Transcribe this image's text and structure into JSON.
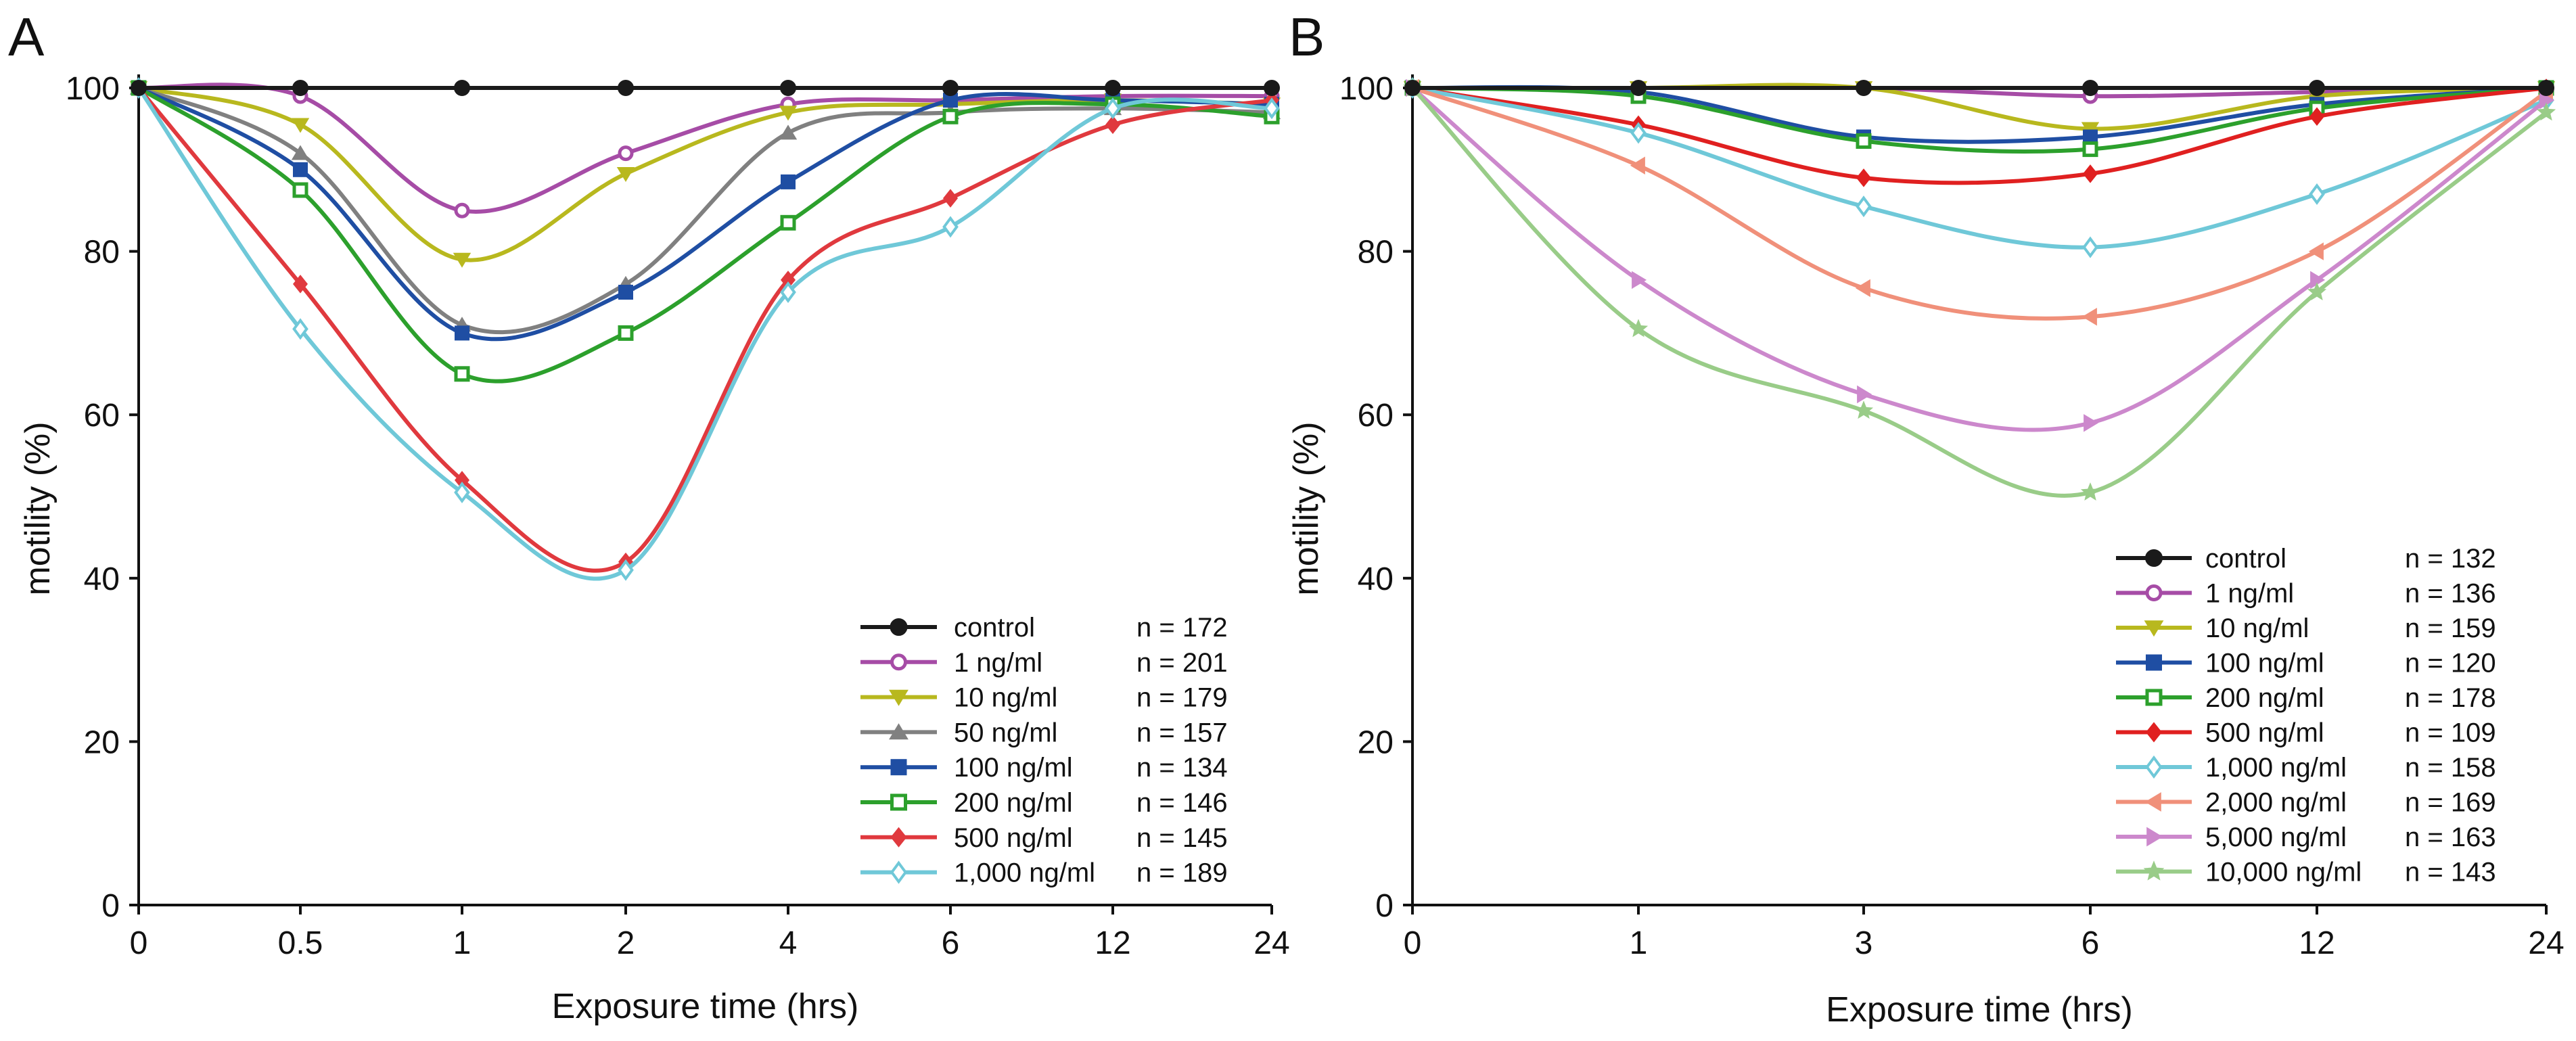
{
  "chart_data": [
    {
      "type": "line",
      "panel": "A",
      "xlabel": "Exposure time (hrs)",
      "ylabel": "motility (%)",
      "ylim": [
        0,
        100
      ],
      "yticks": [
        0,
        20,
        40,
        60,
        80,
        100
      ],
      "categories": [
        "0",
        "0.5",
        "1",
        "2",
        "4",
        "6",
        "12",
        "24"
      ],
      "legend_position": "bottom-right",
      "series": [
        {
          "name": "control",
          "n": "n = 172",
          "color": "#1a1a1a",
          "marker": "circle-filled",
          "values": [
            100,
            100,
            100,
            100,
            100,
            100,
            100,
            100
          ]
        },
        {
          "name": "1 ng/ml",
          "n": "n = 201",
          "color": "#a64ca6",
          "marker": "circle-open",
          "values": [
            100,
            99,
            85,
            92,
            98,
            98.5,
            99,
            99
          ]
        },
        {
          "name": "10 ng/ml",
          "n": "n = 179",
          "color": "#b8b81e",
          "marker": "triangle-down",
          "values": [
            100,
            95.5,
            79,
            89.5,
            97,
            98,
            98.5,
            98
          ]
        },
        {
          "name": "50 ng/ml",
          "n": "n = 157",
          "color": "#808080",
          "marker": "triangle-up",
          "values": [
            100,
            92,
            71,
            76,
            94.5,
            97,
            97.5,
            97
          ]
        },
        {
          "name": "100 ng/ml",
          "n": "n = 134",
          "color": "#1f4ea3",
          "marker": "square-filled",
          "values": [
            100,
            90,
            70,
            75,
            88.5,
            98.5,
            98.5,
            98
          ]
        },
        {
          "name": "200 ng/ml",
          "n": "n = 146",
          "color": "#2ca02c",
          "marker": "square-open",
          "values": [
            100,
            87.5,
            65,
            70,
            83.5,
            96.5,
            98,
            96.5
          ]
        },
        {
          "name": "500 ng/ml",
          "n": "n = 145",
          "color": "#e0393e",
          "marker": "diamond-filled",
          "values": [
            100,
            76,
            52,
            42,
            76.5,
            86.5,
            95.5,
            98.5
          ]
        },
        {
          "name": "1,000 ng/ml",
          "n": "n = 189",
          "color": "#6fc8d8",
          "marker": "diamond-open",
          "values": [
            100,
            70.5,
            50.5,
            41,
            75,
            83,
            97.5,
            97.5
          ]
        }
      ]
    },
    {
      "type": "line",
      "panel": "B",
      "xlabel": "Exposure time (hrs)",
      "ylabel": "motility (%)",
      "ylim": [
        0,
        100
      ],
      "yticks": [
        0,
        20,
        40,
        60,
        80,
        100
      ],
      "categories": [
        "0",
        "1",
        "3",
        "6",
        "12",
        "24"
      ],
      "legend_position": "bottom-right",
      "series": [
        {
          "name": "control",
          "n": "n = 132",
          "color": "#1a1a1a",
          "marker": "circle-filled",
          "values": [
            100,
            100,
            100,
            100,
            100,
            100
          ]
        },
        {
          "name": "1 ng/ml",
          "n": "n = 136",
          "color": "#a64ca6",
          "marker": "circle-open",
          "values": [
            100,
            100,
            100,
            99,
            99.5,
            100
          ]
        },
        {
          "name": "10 ng/ml",
          "n": "n = 159",
          "color": "#b8b81e",
          "marker": "triangle-down",
          "values": [
            100,
            100,
            100,
            95,
            99,
            100
          ]
        },
        {
          "name": "100 ng/ml",
          "n": "n = 120",
          "color": "#1f4ea3",
          "marker": "square-filled",
          "values": [
            100,
            99.5,
            94,
            94,
            98,
            100
          ]
        },
        {
          "name": "200 ng/ml",
          "n": "n = 178",
          "color": "#2ca02c",
          "marker": "square-open",
          "values": [
            100,
            99,
            93.5,
            92.5,
            97.5,
            100
          ]
        },
        {
          "name": "500 ng/ml",
          "n": "n = 109",
          "color": "#e02020",
          "marker": "diamond-filled",
          "values": [
            100,
            95.5,
            89,
            89.5,
            96.5,
            100
          ]
        },
        {
          "name": "1,000 ng/ml",
          "n": "n = 158",
          "color": "#6fc8d8",
          "marker": "diamond-open",
          "values": [
            100,
            94.5,
            85.5,
            80.5,
            87,
            98.5
          ]
        },
        {
          "name": "2,000 ng/ml",
          "n": "n = 169",
          "color": "#f0907a",
          "marker": "triangle-left",
          "values": [
            100,
            90.5,
            75.5,
            72,
            80,
            99.5
          ]
        },
        {
          "name": "5,000 ng/ml",
          "n": "n = 163",
          "color": "#cc88cc",
          "marker": "triangle-right",
          "values": [
            100,
            76.5,
            62.5,
            59,
            76.5,
            98.5
          ]
        },
        {
          "name": "10,000 ng/ml",
          "n": "n = 143",
          "color": "#99cc88",
          "marker": "star",
          "values": [
            100,
            70.5,
            60.5,
            50.5,
            75,
            97
          ]
        }
      ]
    }
  ]
}
